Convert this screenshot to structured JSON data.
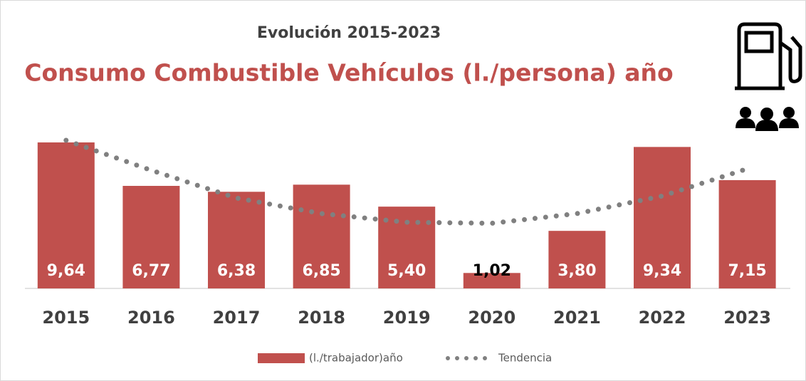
{
  "chart_data": {
    "type": "bar",
    "subtitle": "Evolución 2015-2023",
    "title": "Consumo Combustible Vehículos (l./persona) año",
    "categories": [
      "2015",
      "2016",
      "2017",
      "2018",
      "2019",
      "2020",
      "2021",
      "2022",
      "2023"
    ],
    "series": [
      {
        "name": "(l./trabajador)año",
        "color": "#c0504d",
        "values": [
          9.64,
          6.77,
          6.38,
          6.85,
          5.4,
          1.02,
          3.8,
          9.34,
          7.15
        ],
        "value_labels": [
          "9,64",
          "6,77",
          "6,38",
          "6,85",
          "5,40",
          "1,02",
          "3,80",
          "9,34",
          "7,15"
        ]
      },
      {
        "name": "Tendencia",
        "color": "#808080",
        "values": [
          9.78,
          7.8,
          5.97,
          4.94,
          4.37,
          4.3,
          4.94,
          6.1,
          7.9
        ]
      }
    ]
  }
}
